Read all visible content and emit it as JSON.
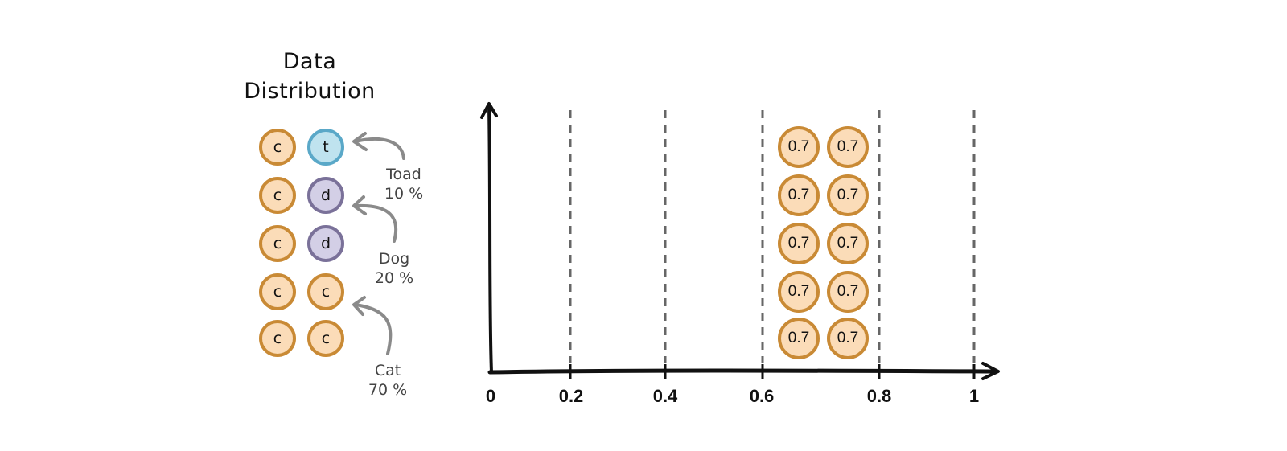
{
  "title": {
    "line1": "Data",
    "line2": "Distribution"
  },
  "distribution": {
    "grid": [
      [
        "c",
        "t"
      ],
      [
        "c",
        "d"
      ],
      [
        "c",
        "d"
      ],
      [
        "c",
        "c"
      ],
      [
        "c",
        "c"
      ]
    ],
    "labels": [
      {
        "name": "Toad",
        "percent": "10 %"
      },
      {
        "name": "Dog",
        "percent": "20 %"
      },
      {
        "name": "Cat",
        "percent": "70 %"
      }
    ]
  },
  "axis": {
    "ticks": [
      "0",
      "0.2",
      "0.4",
      "0.6",
      "0.8",
      "1"
    ],
    "dashed_lines_at": [
      0.2,
      0.4,
      0.6,
      0.8,
      1
    ]
  },
  "scores": {
    "value": "0.7",
    "columns": 2,
    "rows": 5
  },
  "colors": {
    "cat_border": "#c98a35",
    "cat_fill": "#fbdcb8",
    "toad_border": "#5aa8c8",
    "toad_fill": "#bfe3ef",
    "dog_border": "#7a7199",
    "dog_fill": "#d3cfe6",
    "arrow": "#8a8a8a",
    "axis": "#111111",
    "gridline": "#666666"
  }
}
